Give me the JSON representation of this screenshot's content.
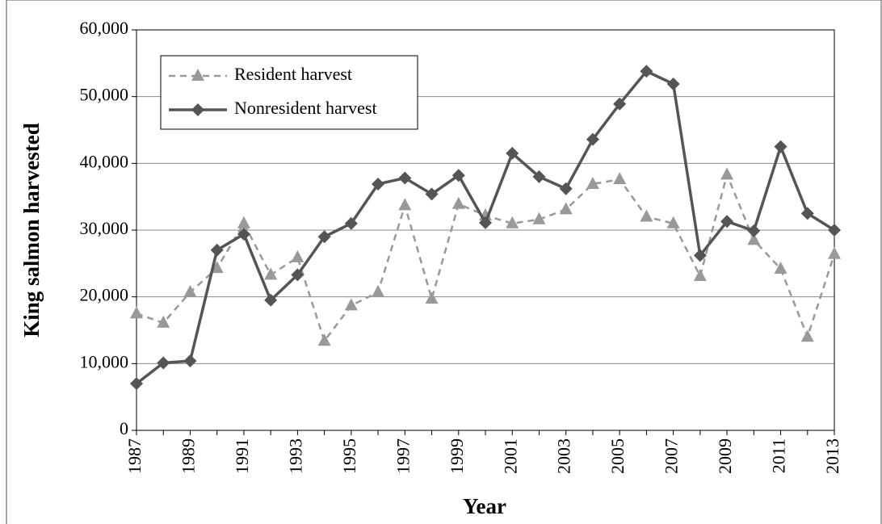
{
  "chart_data": {
    "type": "line",
    "x": [
      1987,
      1988,
      1989,
      1990,
      1991,
      1992,
      1993,
      1994,
      1995,
      1996,
      1997,
      1998,
      1999,
      2000,
      2001,
      2002,
      2003,
      2004,
      2005,
      2006,
      2007,
      2008,
      2009,
      2010,
      2011,
      2012,
      2013
    ],
    "series": [
      {
        "name": "Resident harvest",
        "color": "#999999",
        "values": [
          17500,
          16100,
          20700,
          24300,
          31000,
          23300,
          25900,
          13400,
          18700,
          20700,
          33700,
          19700,
          33900,
          32200,
          31000,
          31600,
          33100,
          36900,
          37600,
          32000,
          31000,
          23100,
          38300,
          28500,
          24200,
          14000,
          26400
        ]
      },
      {
        "name": "Nonresident harvest",
        "color": "#555555",
        "values": [
          7000,
          10100,
          10400,
          27000,
          29400,
          19500,
          23300,
          29000,
          31000,
          36900,
          37800,
          35400,
          38200,
          31100,
          41500,
          38000,
          36200,
          43600,
          48900,
          53800,
          51900,
          26200,
          31300,
          29900,
          42500,
          32500,
          30000
        ]
      }
    ],
    "xlim": [
      1987,
      2013
    ],
    "xticks": [
      1987,
      1989,
      1991,
      1993,
      1995,
      1997,
      1999,
      2001,
      2003,
      2005,
      2007,
      2009,
      2011,
      2013
    ],
    "ylim": [
      0,
      60000
    ],
    "yticks": [
      0,
      {
        "value": 10000,
        "label": "10,000"
      },
      {
        "value": 20000,
        "label": "20,000"
      },
      {
        "value": 30000,
        "label": "30,000"
      },
      {
        "value": 40000,
        "label": "40,000"
      },
      {
        "value": 50000,
        "label": "50,000"
      },
      {
        "value": 60000,
        "label": "60,000"
      }
    ],
    "xlabel": "Year",
    "ylabel": "King salmon harvested",
    "grid": true,
    "legend": "top-left"
  }
}
